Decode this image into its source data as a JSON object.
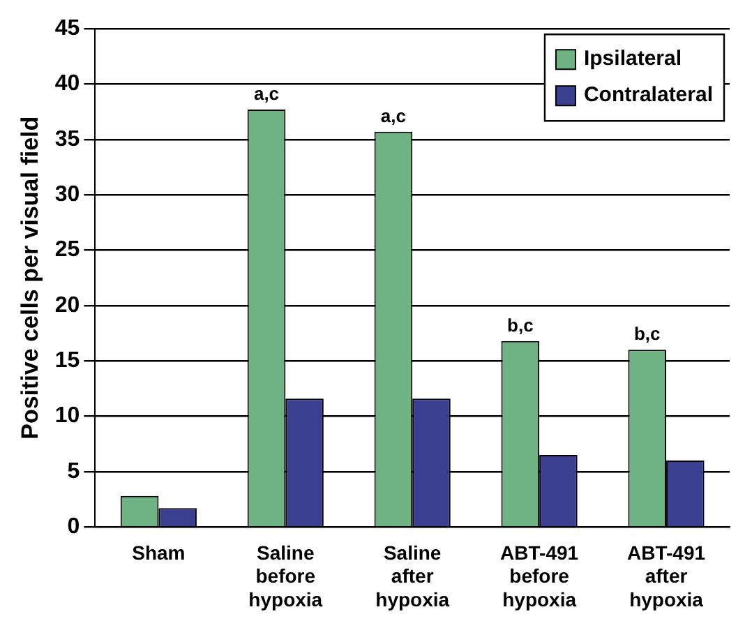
{
  "chart_data": {
    "type": "bar",
    "ylabel": "Positive cells per visual field",
    "categories": [
      "Sham",
      "Saline before hypoxia",
      "Saline after hypoxia",
      "ABT-491 before hypoxia",
      "ABT-491 after hypoxia"
    ],
    "series": [
      {
        "name": "Ipsilateral",
        "color": "#6fb385",
        "values": [
          2.8,
          37.7,
          35.7,
          16.8,
          16
        ]
      },
      {
        "name": "Contralateral",
        "color": "#3a3f8f",
        "values": [
          1.7,
          11.6,
          11.6,
          6.5,
          6
        ]
      }
    ],
    "ylim": [
      0,
      45
    ],
    "yticks": [
      0,
      5,
      10,
      15,
      20,
      25,
      30,
      35,
      40,
      45
    ],
    "grid": "y",
    "legend": "top right",
    "annotations": [
      {
        "text": "a,c",
        "x": "Saline before hypoxia",
        "y": 37.7
      },
      {
        "text": "a,c",
        "x": "Saline after hypoxia",
        "y": 35.7
      },
      {
        "text": "b,c",
        "x": "ABT-491 before hypoxia",
        "y": 16.8
      },
      {
        "text": "b,c",
        "x": "ABT-491 after hypoxia",
        "y": 16
      }
    ]
  }
}
